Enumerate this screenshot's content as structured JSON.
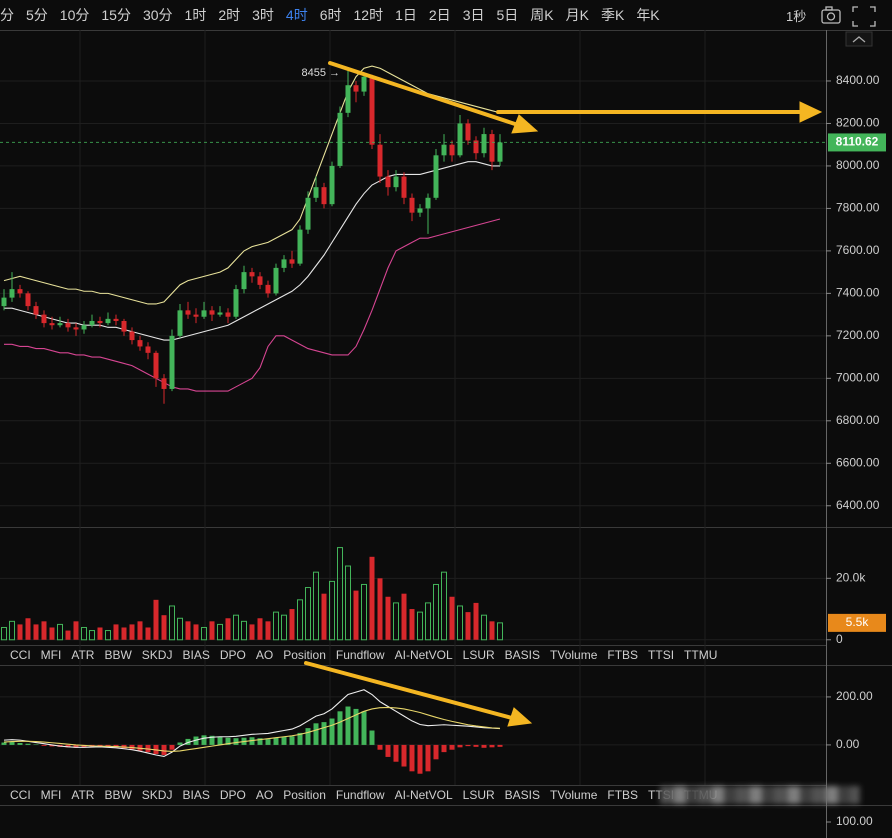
{
  "toolbar": {
    "intervals": [
      "分",
      "5分",
      "10分",
      "15分",
      "30分",
      "1时",
      "2时",
      "3时",
      "4时",
      "6时",
      "12时",
      "1日",
      "2日",
      "3日",
      "5日",
      "周K",
      "月K",
      "季K",
      "年K"
    ],
    "active": 8,
    "refresh": "1秒"
  },
  "tabs": [
    "CCI",
    "MFI",
    "ATR",
    "BBW",
    "SKDJ",
    "BIAS",
    "DPO",
    "AO",
    "Position",
    "Fundflow",
    "AI-NetVOL",
    "LSUR",
    "BASIS",
    "TVolume",
    "FTBS",
    "TTSI",
    "TTMU"
  ],
  "next_panel_tick": {
    "value": 100,
    "label": "100.00"
  },
  "chart_data": [
    {
      "type": "candlestick",
      "ylim": [
        6300,
        8640
      ],
      "yticks": [
        {
          "value": 6400,
          "label": "6400.00"
        },
        {
          "value": 6600,
          "label": "6600.00"
        },
        {
          "value": 6800,
          "label": "6800.00"
        },
        {
          "value": 7000,
          "label": "7000.00"
        },
        {
          "value": 7200,
          "label": "7200.00"
        },
        {
          "value": 7400,
          "label": "7400.00"
        },
        {
          "value": 7600,
          "label": "7600.00"
        },
        {
          "value": 7800,
          "label": "7800.00"
        },
        {
          "value": 8000,
          "label": "8000.00"
        },
        {
          "value": 8200,
          "label": "8200.00"
        },
        {
          "value": 8400,
          "label": "8400.00"
        }
      ],
      "grid": true,
      "up_color": "#43b55a",
      "down_color": "#d8282c",
      "current": 8110.62,
      "annotation": "8455 →",
      "candles": [
        [
          7340,
          7420,
          7320,
          7380
        ],
        [
          7380,
          7500,
          7360,
          7420
        ],
        [
          7420,
          7440,
          7380,
          7400
        ],
        [
          7400,
          7410,
          7320,
          7340
        ],
        [
          7340,
          7360,
          7280,
          7300
        ],
        [
          7300,
          7320,
          7240,
          7260
        ],
        [
          7260,
          7290,
          7230,
          7250
        ],
        [
          7250,
          7290,
          7240,
          7260
        ],
        [
          7260,
          7280,
          7220,
          7240
        ],
        [
          7240,
          7260,
          7200,
          7230
        ],
        [
          7230,
          7270,
          7210,
          7250
        ],
        [
          7250,
          7300,
          7240,
          7270
        ],
        [
          7270,
          7290,
          7240,
          7260
        ],
        [
          7260,
          7310,
          7250,
          7280
        ],
        [
          7280,
          7300,
          7250,
          7270
        ],
        [
          7270,
          7280,
          7200,
          7220
        ],
        [
          7220,
          7240,
          7160,
          7180
        ],
        [
          7180,
          7200,
          7130,
          7150
        ],
        [
          7150,
          7170,
          7090,
          7120
        ],
        [
          7120,
          7130,
          6960,
          7000
        ],
        [
          7000,
          7020,
          6880,
          6950
        ],
        [
          6950,
          7230,
          6940,
          7200
        ],
        [
          7200,
          7350,
          7190,
          7320
        ],
        [
          7320,
          7360,
          7280,
          7300
        ],
        [
          7300,
          7330,
          7260,
          7290
        ],
        [
          7290,
          7360,
          7280,
          7320
        ],
        [
          7320,
          7340,
          7270,
          7300
        ],
        [
          7300,
          7340,
          7290,
          7310
        ],
        [
          7310,
          7330,
          7260,
          7290
        ],
        [
          7290,
          7440,
          7280,
          7420
        ],
        [
          7420,
          7530,
          7400,
          7500
        ],
        [
          7500,
          7520,
          7450,
          7480
        ],
        [
          7480,
          7500,
          7420,
          7440
        ],
        [
          7440,
          7460,
          7380,
          7400
        ],
        [
          7400,
          7540,
          7390,
          7520
        ],
        [
          7520,
          7580,
          7500,
          7560
        ],
        [
          7560,
          7600,
          7520,
          7540
        ],
        [
          7540,
          7720,
          7530,
          7700
        ],
        [
          7700,
          7880,
          7680,
          7850
        ],
        [
          7850,
          7950,
          7830,
          7900
        ],
        [
          7900,
          7920,
          7800,
          7820
        ],
        [
          7820,
          8020,
          7810,
          8000
        ],
        [
          8000,
          8280,
          7990,
          8250
        ],
        [
          8250,
          8455,
          8230,
          8380
        ],
        [
          8380,
          8400,
          8300,
          8350
        ],
        [
          8350,
          8440,
          8330,
          8420
        ],
        [
          8420,
          8430,
          8080,
          8100
        ],
        [
          8100,
          8150,
          7920,
          7950
        ],
        [
          7950,
          7980,
          7860,
          7900
        ],
        [
          7900,
          7980,
          7880,
          7950
        ],
        [
          7950,
          7970,
          7820,
          7850
        ],
        [
          7850,
          7870,
          7740,
          7780
        ],
        [
          7780,
          7820,
          7760,
          7800
        ],
        [
          7800,
          7870,
          7680,
          7850
        ],
        [
          7850,
          8080,
          7840,
          8050
        ],
        [
          8050,
          8150,
          8020,
          8100
        ],
        [
          8100,
          8120,
          8020,
          8050
        ],
        [
          8050,
          8240,
          8040,
          8200
        ],
        [
          8200,
          8220,
          8100,
          8120
        ],
        [
          8120,
          8140,
          8030,
          8060
        ],
        [
          8060,
          8180,
          8040,
          8150
        ],
        [
          8150,
          8170,
          7980,
          8020
        ],
        [
          8020,
          8150,
          8000,
          8110.62
        ]
      ],
      "series": [
        {
          "color": "#e8e29a",
          "values": [
            7460,
            7470,
            7480,
            7470,
            7460,
            7450,
            7440,
            7430,
            7420,
            7420,
            7410,
            7410,
            7400,
            7400,
            7390,
            7380,
            7370,
            7360,
            7350,
            7350,
            7360,
            7400,
            7440,
            7460,
            7470,
            7480,
            7490,
            7500,
            7520,
            7560,
            7600,
            7620,
            7630,
            7640,
            7660,
            7680,
            7700,
            7750,
            7850,
            7950,
            8050,
            8150,
            8250,
            8350,
            8420,
            8460,
            8470,
            8460,
            8440,
            8420,
            8400,
            8380,
            8360,
            8340,
            8330,
            8320,
            8310,
            8300,
            8290,
            8280,
            8270,
            8260,
            8250
          ]
        },
        {
          "color": "#e6e6e6",
          "values": [
            7330,
            7330,
            7320,
            7310,
            7300,
            7290,
            7280,
            7270,
            7260,
            7260,
            7250,
            7250,
            7250,
            7240,
            7240,
            7230,
            7220,
            7210,
            7200,
            7190,
            7180,
            7180,
            7190,
            7200,
            7210,
            7220,
            7230,
            7240,
            7250,
            7270,
            7290,
            7310,
            7330,
            7350,
            7370,
            7390,
            7410,
            7440,
            7480,
            7530,
            7580,
            7640,
            7700,
            7760,
            7820,
            7870,
            7910,
            7930,
            7950,
            7960,
            7960,
            7960,
            7960,
            7970,
            7980,
            7990,
            8000,
            8010,
            8020,
            8020,
            8010,
            8000,
            8000
          ]
        },
        {
          "color": "#d64592",
          "values": [
            7160,
            7160,
            7150,
            7150,
            7140,
            7140,
            7130,
            7120,
            7120,
            7110,
            7110,
            7100,
            7100,
            7090,
            7080,
            7070,
            7060,
            7040,
            7020,
            7000,
            6980,
            6960,
            6950,
            6950,
            6940,
            6940,
            6940,
            6940,
            6940,
            6960,
            6980,
            7000,
            7050,
            7150,
            7200,
            7200,
            7180,
            7160,
            7140,
            7130,
            7120,
            7110,
            7110,
            7110,
            7150,
            7230,
            7320,
            7420,
            7520,
            7600,
            7620,
            7640,
            7660,
            7660,
            7670,
            7680,
            7690,
            7700,
            7710,
            7720,
            7730,
            7740,
            7750
          ]
        }
      ]
    },
    {
      "type": "volume",
      "ylim": [
        -1700,
        36700
      ],
      "yticks": [
        0,
        {
          "value": 20000,
          "label": "20.0k"
        }
      ],
      "grid": true,
      "current": {
        "value": 5500,
        "label": "5.5k"
      },
      "values": [
        4000,
        6000,
        5000,
        7000,
        5000,
        6000,
        4000,
        5000,
        3000,
        6000,
        4000,
        3000,
        4000,
        3000,
        5000,
        4000,
        5000,
        6000,
        4000,
        13000,
        8000,
        11000,
        7000,
        6000,
        5000,
        4000,
        6000,
        5000,
        7000,
        8000,
        6000,
        5000,
        7000,
        6000,
        9000,
        8000,
        10000,
        13000,
        17000,
        22000,
        15000,
        19000,
        30000,
        24000,
        16000,
        18000,
        27000,
        20000,
        14000,
        12000,
        15000,
        10000,
        9000,
        12000,
        18000,
        22000,
        14000,
        11000,
        9000,
        12000,
        8000,
        6000,
        5500
      ]
    },
    {
      "type": "macd",
      "ylim": [
        -167,
        333
      ],
      "yticks": [
        {
          "value": 0,
          "label": "0.00"
        },
        {
          "value": 200,
          "label": "200.00"
        }
      ],
      "grid": true,
      "up_color": "#43b55a",
      "down_color": "#d8282c",
      "values": [
        10,
        12,
        8,
        5,
        2,
        -4,
        -6,
        -8,
        -10,
        -12,
        -10,
        -8,
        -6,
        -8,
        -10,
        -14,
        -18,
        -24,
        -30,
        -38,
        -42,
        -20,
        10,
        25,
        35,
        40,
        38,
        35,
        30,
        28,
        30,
        32,
        28,
        24,
        30,
        34,
        36,
        50,
        70,
        90,
        95,
        110,
        140,
        160,
        150,
        140,
        60,
        -20,
        -50,
        -70,
        -90,
        -110,
        -120,
        -110,
        -60,
        -30,
        -20,
        -10,
        -5,
        -8,
        -12,
        -10,
        -8
      ],
      "series": [
        {
          "color": "#eeeeee",
          "values": [
            20,
            22,
            20,
            15,
            10,
            5,
            0,
            -5,
            -8,
            -10,
            -10,
            -9,
            -8,
            -10,
            -12,
            -16,
            -20,
            -26,
            -34,
            -42,
            -48,
            -30,
            -5,
            10,
            20,
            28,
            32,
            34,
            34,
            36,
            40,
            44,
            46,
            48,
            54,
            60,
            66,
            80,
            100,
            120,
            130,
            150,
            180,
            210,
            220,
            230,
            210,
            180,
            160,
            140,
            120,
            100,
            85,
            80,
            82,
            84,
            82,
            80,
            78,
            75,
            72,
            70,
            68
          ]
        },
        {
          "color": "#e8d66a",
          "values": [
            12,
            14,
            15,
            15,
            14,
            12,
            9,
            6,
            3,
            0,
            -2,
            -4,
            -5,
            -6,
            -7,
            -9,
            -11,
            -14,
            -17,
            -21,
            -25,
            -27,
            -25,
            -20,
            -15,
            -10,
            -5,
            0,
            5,
            10,
            14,
            18,
            22,
            26,
            30,
            34,
            38,
            44,
            52,
            62,
            72,
            82,
            95,
            110,
            125,
            140,
            150,
            155,
            156,
            154,
            150,
            143,
            135,
            125,
            115,
            106,
            98,
            91,
            84,
            79,
            75,
            71,
            69
          ]
        }
      ]
    }
  ]
}
